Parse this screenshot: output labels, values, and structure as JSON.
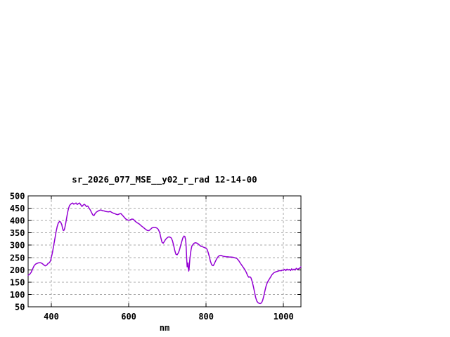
{
  "page": {
    "background": "#ffffff"
  },
  "chart_data": {
    "type": "line",
    "title": "sr_2026_077_MSE__y02_r_rad 12-14-00",
    "xlabel": "nm",
    "ylabel": "",
    "xlim": [
      340,
      1045
    ],
    "ylim": [
      50,
      500
    ],
    "x_ticks": [
      400,
      600,
      800,
      1000
    ],
    "y_ticks": [
      50,
      100,
      150,
      200,
      250,
      300,
      350,
      400,
      450,
      500
    ],
    "grid": true,
    "legend": "none",
    "colors": {
      "line": "#9400d3",
      "grid": "#a8a8a8",
      "border": "#000000",
      "text": "#000000",
      "background": "#ffffff"
    },
    "series": [
      {
        "name": "",
        "points": [
          [
            340,
            178
          ],
          [
            344,
            182
          ],
          [
            348,
            190
          ],
          [
            352,
            205
          ],
          [
            356,
            218
          ],
          [
            360,
            224
          ],
          [
            364,
            227
          ],
          [
            368,
            229
          ],
          [
            372,
            229
          ],
          [
            376,
            226
          ],
          [
            380,
            221
          ],
          [
            384,
            216
          ],
          [
            388,
            219
          ],
          [
            392,
            227
          ],
          [
            395,
            229
          ],
          [
            398,
            237
          ],
          [
            400,
            250
          ],
          [
            403,
            272
          ],
          [
            406,
            298
          ],
          [
            409,
            325
          ],
          [
            412,
            352
          ],
          [
            415,
            375
          ],
          [
            418,
            390
          ],
          [
            421,
            396
          ],
          [
            424,
            394
          ],
          [
            427,
            383
          ],
          [
            429,
            368
          ],
          [
            431,
            359
          ],
          [
            433,
            361
          ],
          [
            435,
            372
          ],
          [
            437,
            388
          ],
          [
            439,
            406
          ],
          [
            441,
            424
          ],
          [
            443,
            440
          ],
          [
            445,
            452
          ],
          [
            447,
            461
          ],
          [
            450,
            466
          ],
          [
            452,
            469
          ],
          [
            455,
            471
          ],
          [
            458,
            466
          ],
          [
            461,
            469
          ],
          [
            464,
            471
          ],
          [
            467,
            465
          ],
          [
            470,
            469
          ],
          [
            473,
            471
          ],
          [
            476,
            464
          ],
          [
            479,
            457
          ],
          [
            482,
            462
          ],
          [
            485,
            466
          ],
          [
            488,
            462
          ],
          [
            491,
            456
          ],
          [
            494,
            459
          ],
          [
            497,
            452
          ],
          [
            501,
            442
          ],
          [
            504,
            432
          ],
          [
            507,
            423
          ],
          [
            510,
            420
          ],
          [
            513,
            428
          ],
          [
            516,
            434
          ],
          [
            520,
            438
          ],
          [
            524,
            441
          ],
          [
            528,
            443
          ],
          [
            532,
            440
          ],
          [
            536,
            439
          ],
          [
            540,
            437
          ],
          [
            544,
            436
          ],
          [
            548,
            435
          ],
          [
            552,
            437
          ],
          [
            556,
            433
          ],
          [
            560,
            430
          ],
          [
            564,
            428
          ],
          [
            568,
            425
          ],
          [
            572,
            424
          ],
          [
            576,
            427
          ],
          [
            580,
            428
          ],
          [
            584,
            421
          ],
          [
            588,
            414
          ],
          [
            592,
            407
          ],
          [
            596,
            403
          ],
          [
            600,
            401
          ],
          [
            604,
            403
          ],
          [
            608,
            406
          ],
          [
            612,
            405
          ],
          [
            616,
            398
          ],
          [
            620,
            393
          ],
          [
            624,
            389
          ],
          [
            628,
            385
          ],
          [
            632,
            379
          ],
          [
            636,
            374
          ],
          [
            640,
            369
          ],
          [
            644,
            364
          ],
          [
            648,
            360
          ],
          [
            652,
            359
          ],
          [
            656,
            364
          ],
          [
            660,
            370
          ],
          [
            664,
            372
          ],
          [
            668,
            372
          ],
          [
            672,
            370
          ],
          [
            676,
            365
          ],
          [
            680,
            352
          ],
          [
            683,
            330
          ],
          [
            686,
            312
          ],
          [
            689,
            308
          ],
          [
            692,
            315
          ],
          [
            695,
            323
          ],
          [
            698,
            328
          ],
          [
            701,
            332
          ],
          [
            704,
            334
          ],
          [
            707,
            332
          ],
          [
            710,
            329
          ],
          [
            713,
            318
          ],
          [
            716,
            300
          ],
          [
            719,
            278
          ],
          [
            722,
            263
          ],
          [
            725,
            261
          ],
          [
            728,
            268
          ],
          [
            731,
            280
          ],
          [
            734,
            298
          ],
          [
            737,
            315
          ],
          [
            740,
            330
          ],
          [
            743,
            337
          ],
          [
            745,
            335
          ],
          [
            747,
            322
          ],
          [
            748,
            305
          ],
          [
            749,
            272
          ],
          [
            750,
            240
          ],
          [
            751,
            212
          ],
          [
            752,
            224
          ],
          [
            753,
            228
          ],
          [
            754,
            206
          ],
          [
            755,
            195
          ],
          [
            756,
            202
          ],
          [
            757,
            225
          ],
          [
            758,
            243
          ],
          [
            759,
            258
          ],
          [
            761,
            281
          ],
          [
            763,
            296
          ],
          [
            766,
            303
          ],
          [
            769,
            308
          ],
          [
            772,
            310
          ],
          [
            775,
            309
          ],
          [
            778,
            307
          ],
          [
            781,
            303
          ],
          [
            784,
            299
          ],
          [
            787,
            295
          ],
          [
            790,
            294
          ],
          [
            793,
            292
          ],
          [
            796,
            290
          ],
          [
            799,
            288
          ],
          [
            802,
            284
          ],
          [
            805,
            272
          ],
          [
            808,
            255
          ],
          [
            811,
            235
          ],
          [
            814,
            222
          ],
          [
            816,
            218
          ],
          [
            818,
            217
          ],
          [
            820,
            221
          ],
          [
            823,
            231
          ],
          [
            826,
            241
          ],
          [
            829,
            249
          ],
          [
            832,
            255
          ],
          [
            835,
            258
          ],
          [
            838,
            259
          ],
          [
            841,
            257
          ],
          [
            844,
            255
          ],
          [
            848,
            254
          ],
          [
            852,
            253
          ],
          [
            856,
            253
          ],
          [
            860,
            252
          ],
          [
            864,
            252
          ],
          [
            868,
            251
          ],
          [
            872,
            250
          ],
          [
            876,
            248
          ],
          [
            880,
            245
          ],
          [
            884,
            238
          ],
          [
            888,
            228
          ],
          [
            892,
            219
          ],
          [
            896,
            210
          ],
          [
            900,
            201
          ],
          [
            904,
            189
          ],
          [
            907,
            177
          ],
          [
            910,
            170
          ],
          [
            913,
            172
          ],
          [
            916,
            167
          ],
          [
            919,
            152
          ],
          [
            922,
            133
          ],
          [
            925,
            110
          ],
          [
            928,
            88
          ],
          [
            931,
            73
          ],
          [
            934,
            67
          ],
          [
            937,
            64
          ],
          [
            940,
            63
          ],
          [
            943,
            66
          ],
          [
            946,
            76
          ],
          [
            949,
            94
          ],
          [
            952,
            115
          ],
          [
            955,
            135
          ],
          [
            958,
            148
          ],
          [
            961,
            157
          ],
          [
            964,
            164
          ],
          [
            967,
            172
          ],
          [
            970,
            180
          ],
          [
            973,
            185
          ],
          [
            976,
            189
          ],
          [
            979,
            191
          ],
          [
            982,
            193
          ],
          [
            985,
            194
          ],
          [
            988,
            196
          ],
          [
            991,
            197
          ],
          [
            994,
            196
          ],
          [
            997,
            199
          ],
          [
            1000,
            198
          ],
          [
            1003,
            202
          ],
          [
            1006,
            197
          ],
          [
            1009,
            203
          ],
          [
            1012,
            199
          ],
          [
            1015,
            202
          ],
          [
            1018,
            197
          ],
          [
            1021,
            204
          ],
          [
            1024,
            199
          ],
          [
            1027,
            203
          ],
          [
            1030,
            199
          ],
          [
            1033,
            206
          ],
          [
            1036,
            202
          ],
          [
            1039,
            204
          ],
          [
            1042,
            207
          ],
          [
            1045,
            212
          ]
        ]
      }
    ]
  }
}
